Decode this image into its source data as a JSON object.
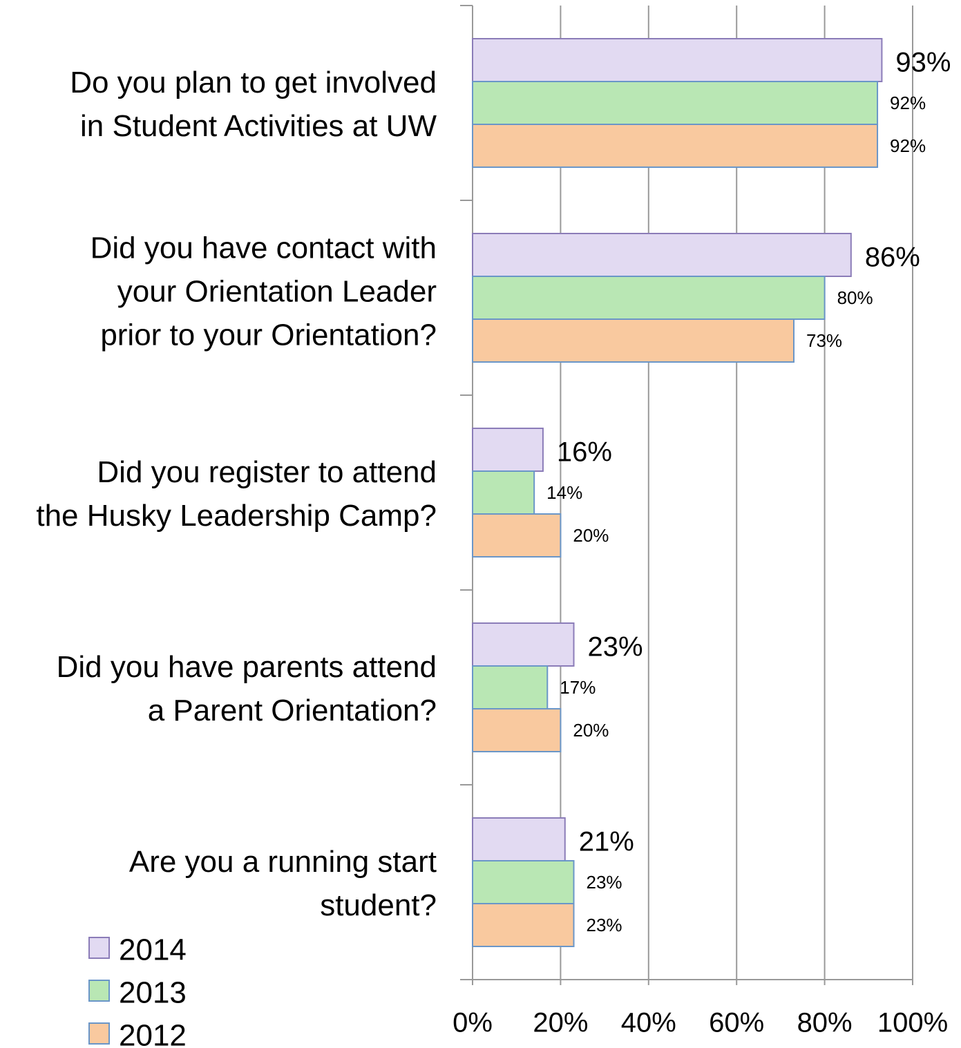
{
  "chart_data": {
    "type": "hbar",
    "categories": [
      [
        "Do you plan to get involved",
        "in Student Activities at UW"
      ],
      [
        "Did you have contact with",
        "your Orientation Leader",
        "prior to your Orientation?"
      ],
      [
        "Did you register to attend",
        "the Husky Leadership Camp?"
      ],
      [
        "Did you have parents attend",
        "a Parent Orientation?"
      ],
      [
        "Are you a running start",
        "student?"
      ]
    ],
    "series": [
      {
        "name": "2014",
        "color": "#e2daf2",
        "values": [
          93,
          86,
          16,
          23,
          21
        ],
        "value_labels": [
          "93%",
          "86%",
          "16%",
          "23%",
          "21%"
        ]
      },
      {
        "name": "2013",
        "color": "#b9e7b4",
        "values": [
          92,
          80,
          14,
          17,
          23
        ],
        "value_labels": [
          "92%",
          "80%",
          "14%",
          "17%",
          "23%"
        ]
      },
      {
        "name": "2012",
        "color": "#f9c99f",
        "values": [
          92,
          73,
          20,
          20,
          23
        ],
        "value_labels": [
          "92%",
          "73%",
          "20%",
          "20%",
          "23%"
        ]
      }
    ],
    "xlim": [
      0,
      100
    ],
    "xticks": [
      {
        "value": 0,
        "label": "0%"
      },
      {
        "value": 20,
        "label": "20%"
      },
      {
        "value": 40,
        "label": "40%"
      },
      {
        "value": 60,
        "label": "60%"
      },
      {
        "value": 80,
        "label": "80%"
      },
      {
        "value": 100,
        "label": "100%"
      }
    ],
    "grid": true,
    "legend": "bottom-left"
  }
}
